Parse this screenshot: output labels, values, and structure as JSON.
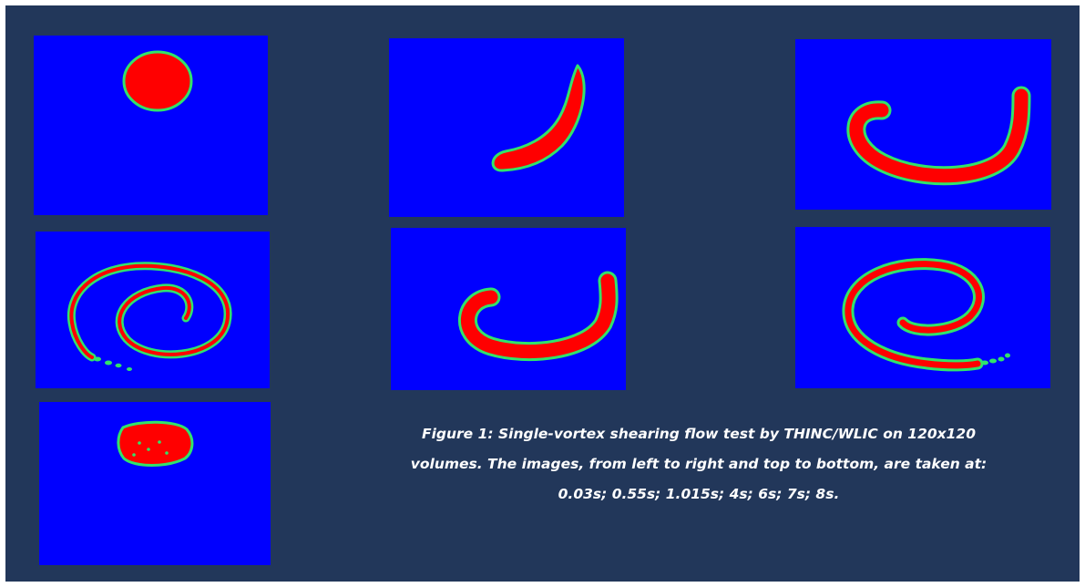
{
  "figure": {
    "caption_lines": [
      "Figure 1: Single-vortex shearing flow test by THINC/WLIC on 120x120",
      "volumes. The images, from left to right and top to bottom, are taken at:",
      "0.03s; 0.55s; 1.015s; 4s; 6s; 7s; 8s."
    ],
    "panels": [
      {
        "time": "0.03s"
      },
      {
        "time": "0.55s"
      },
      {
        "time": "1.015s"
      },
      {
        "time": "4s"
      },
      {
        "time": "6s"
      },
      {
        "time": "7s"
      },
      {
        "time": "8s"
      }
    ]
  },
  "colors": {
    "background": "#22375a",
    "field": "#0000ff",
    "fluid": "#ff0000",
    "interface": "#31e36a",
    "caption_text": "#ffffff"
  }
}
